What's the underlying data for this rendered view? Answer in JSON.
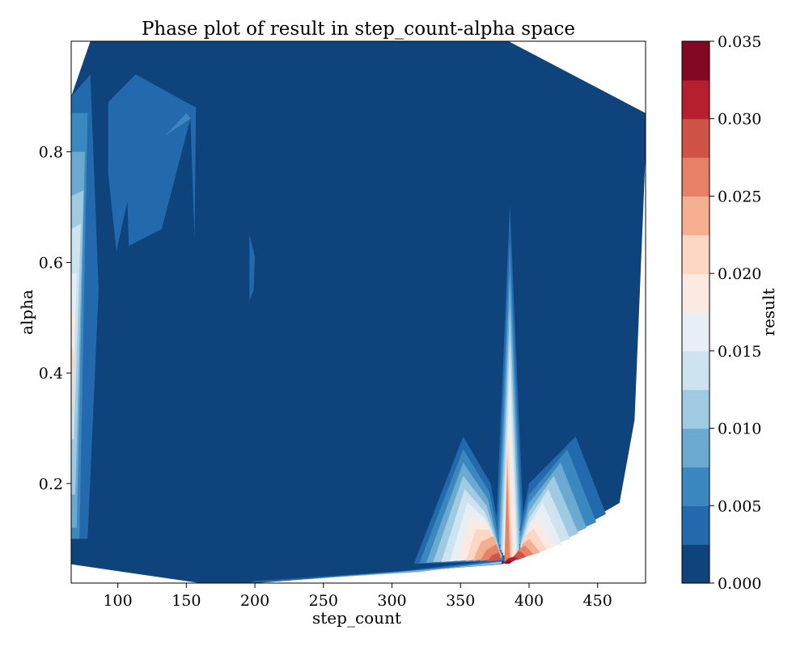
{
  "chart_data": {
    "type": "contour",
    "title": "Phase plot of result in step_count-alpha space",
    "xlabel": "step_count",
    "ylabel": "alpha",
    "xlim": [
      66,
      485
    ],
    "ylim": [
      0.02,
      1.0
    ],
    "xticks": [
      100,
      150,
      200,
      250,
      300,
      350,
      400,
      450
    ],
    "xtick_labels": [
      "100",
      "150",
      "200",
      "250",
      "300",
      "350",
      "400",
      "450"
    ],
    "yticks": [
      0.2,
      0.4,
      0.6,
      0.8
    ],
    "ytick_labels": [
      "0.2",
      "0.4",
      "0.6",
      "0.8"
    ],
    "grid": false,
    "colormap": "RdBu_r",
    "colorbar": {
      "label": "result",
      "range": [
        0.0,
        0.035
      ],
      "levels": [
        0.0,
        0.0025,
        0.005,
        0.0075,
        0.01,
        0.0125,
        0.015,
        0.0175,
        0.02,
        0.0225,
        0.025,
        0.0275,
        0.03,
        0.0325,
        0.035
      ],
      "ticks": [
        0.0,
        0.005,
        0.01,
        0.015,
        0.02,
        0.025,
        0.03,
        0.035
      ],
      "tick_labels": [
        "0.000",
        "0.005",
        "0.010",
        "0.015",
        "0.020",
        "0.025",
        "0.030",
        "0.035"
      ],
      "colors": [
        "#0f437b",
        "#2369ad",
        "#3b88c0",
        "#6aaad0",
        "#9fcae2",
        "#cde3ef",
        "#e8eff4",
        "#faeae1",
        "#fdd7c1",
        "#f4ae90",
        "#e68265",
        "#cf5347",
        "#b51f2e",
        "#830823"
      ]
    },
    "hull": [
      [
        66,
        0.054
      ],
      [
        160,
        0.02
      ],
      [
        200,
        0.02
      ],
      [
        380,
        0.054
      ],
      [
        400,
        0.07
      ],
      [
        466,
        0.165
      ],
      [
        477,
        0.315
      ],
      [
        485,
        0.8
      ],
      [
        485,
        0.87
      ],
      [
        385,
        1.0
      ],
      [
        80,
        1.0
      ],
      [
        66,
        0.9
      ]
    ],
    "regions": [
      {
        "level": 1,
        "points": [
          [
            66,
            0.78
          ],
          [
            66,
            0.9
          ],
          [
            80,
            0.94
          ],
          [
            86,
            0.55
          ],
          [
            78,
            0.1
          ],
          [
            66,
            0.1
          ]
        ]
      },
      {
        "level": 2,
        "points": [
          [
            66,
            0.7
          ],
          [
            66,
            0.87
          ],
          [
            78,
            0.87
          ],
          [
            72,
            0.1
          ],
          [
            66,
            0.1
          ]
        ]
      },
      {
        "level": 3,
        "points": [
          [
            66,
            0.62
          ],
          [
            66,
            0.8
          ],
          [
            76,
            0.8
          ],
          [
            70,
            0.12
          ],
          [
            66,
            0.12
          ]
        ]
      },
      {
        "level": 4,
        "points": [
          [
            66,
            0.55
          ],
          [
            66,
            0.72
          ],
          [
            75,
            0.73
          ],
          [
            69,
            0.18
          ],
          [
            66,
            0.18
          ]
        ]
      },
      {
        "level": 5,
        "points": [
          [
            66,
            0.45
          ],
          [
            66,
            0.66
          ],
          [
            73,
            0.67
          ],
          [
            68,
            0.28
          ],
          [
            66,
            0.28
          ]
        ]
      },
      {
        "level": 6,
        "points": [
          [
            66,
            0.4
          ],
          [
            66,
            0.58
          ],
          [
            70,
            0.58
          ],
          [
            67,
            0.35
          ]
        ]
      },
      {
        "level": 7,
        "points": [
          [
            66,
            0.32
          ],
          [
            66,
            0.52
          ],
          [
            69,
            0.5
          ],
          [
            67,
            0.38
          ]
        ]
      },
      {
        "level": 8,
        "points": [
          [
            66,
            0.3
          ],
          [
            66,
            0.45
          ],
          [
            68,
            0.43
          ]
        ]
      },
      {
        "level": 1,
        "points": [
          [
            93,
            0.89
          ],
          [
            113,
            0.94
          ],
          [
            157,
            0.88
          ],
          [
            156,
            0.64
          ],
          [
            153,
            0.86
          ],
          [
            132,
            0.66
          ],
          [
            108,
            0.63
          ],
          [
            107,
            0.71
          ],
          [
            99,
            0.62
          ],
          [
            93,
            0.76
          ]
        ]
      },
      {
        "level": 2,
        "points": [
          [
            135,
            0.83
          ],
          [
            150,
            0.87
          ],
          [
            153,
            0.86
          ]
        ]
      },
      {
        "level": 1,
        "points": [
          [
            196,
            0.65
          ],
          [
            200,
            0.61
          ],
          [
            199,
            0.55
          ],
          [
            196,
            0.53
          ]
        ]
      },
      {
        "level": 1,
        "points": [
          [
            316,
            0.055
          ],
          [
            352,
            0.285
          ],
          [
            372,
            0.2
          ],
          [
            382,
            0.06
          ]
        ]
      },
      {
        "level": 2,
        "points": [
          [
            320,
            0.056
          ],
          [
            352,
            0.262
          ],
          [
            371,
            0.185
          ],
          [
            381,
            0.062
          ]
        ]
      },
      {
        "level": 3,
        "points": [
          [
            325,
            0.057
          ],
          [
            352,
            0.238
          ],
          [
            370,
            0.172
          ],
          [
            380,
            0.064
          ]
        ]
      },
      {
        "level": 4,
        "points": [
          [
            330,
            0.058
          ],
          [
            352,
            0.214
          ],
          [
            369,
            0.16
          ],
          [
            380,
            0.066
          ]
        ]
      },
      {
        "level": 5,
        "points": [
          [
            336,
            0.058
          ],
          [
            353,
            0.19
          ],
          [
            368,
            0.148
          ],
          [
            380,
            0.068
          ]
        ]
      },
      {
        "level": 6,
        "points": [
          [
            342,
            0.059
          ],
          [
            355,
            0.166
          ],
          [
            368,
            0.137
          ],
          [
            380,
            0.07
          ]
        ]
      },
      {
        "level": 7,
        "points": [
          [
            348,
            0.06
          ],
          [
            358,
            0.14
          ],
          [
            369,
            0.127
          ],
          [
            380,
            0.07
          ]
        ]
      },
      {
        "level": 8,
        "points": [
          [
            354,
            0.06
          ],
          [
            361,
            0.117
          ],
          [
            371,
            0.117
          ],
          [
            380,
            0.07
          ]
        ]
      },
      {
        "level": 9,
        "points": [
          [
            359,
            0.06
          ],
          [
            365,
            0.095
          ],
          [
            374,
            0.105
          ],
          [
            380,
            0.07
          ]
        ]
      },
      {
        "level": 10,
        "points": [
          [
            364,
            0.06
          ],
          [
            369,
            0.08
          ],
          [
            376,
            0.09
          ],
          [
            380,
            0.065
          ]
        ]
      },
      {
        "level": 11,
        "points": [
          [
            369,
            0.058
          ],
          [
            373,
            0.07
          ],
          [
            378,
            0.075
          ],
          [
            380,
            0.06
          ]
        ]
      },
      {
        "level": 1,
        "points": [
          [
            376,
            0.12
          ],
          [
            386,
            0.705
          ],
          [
            396,
            0.12
          ]
        ]
      },
      {
        "level": 2,
        "points": [
          [
            377,
            0.1
          ],
          [
            386,
            0.64
          ],
          [
            395,
            0.1
          ]
        ]
      },
      {
        "level": 3,
        "points": [
          [
            378,
            0.09
          ],
          [
            386,
            0.58
          ],
          [
            394,
            0.09
          ]
        ]
      },
      {
        "level": 4,
        "points": [
          [
            379,
            0.08
          ],
          [
            386,
            0.52
          ],
          [
            393,
            0.08
          ]
        ]
      },
      {
        "level": 5,
        "points": [
          [
            380,
            0.075
          ],
          [
            386,
            0.46
          ],
          [
            392,
            0.075
          ]
        ]
      },
      {
        "level": 6,
        "points": [
          [
            381,
            0.07
          ],
          [
            386,
            0.4
          ],
          [
            391,
            0.07
          ]
        ]
      },
      {
        "level": 7,
        "points": [
          [
            382,
            0.065
          ],
          [
            386,
            0.34
          ],
          [
            390,
            0.065
          ]
        ]
      },
      {
        "level": 8,
        "points": [
          [
            382,
            0.06
          ],
          [
            385,
            0.29
          ],
          [
            388,
            0.06
          ]
        ]
      },
      {
        "level": 9,
        "points": [
          [
            382,
            0.058
          ],
          [
            384,
            0.26
          ],
          [
            387,
            0.058
          ]
        ]
      },
      {
        "level": 10,
        "points": [
          [
            382,
            0.057
          ],
          [
            384,
            0.22
          ],
          [
            386,
            0.057
          ]
        ]
      },
      {
        "level": 1,
        "points": [
          [
            393,
            0.115
          ],
          [
            400,
            0.2
          ],
          [
            434,
            0.285
          ],
          [
            456,
            0.145
          ],
          [
            445,
            0.13
          ]
        ]
      },
      {
        "level": 2,
        "points": [
          [
            393,
            0.105
          ],
          [
            400,
            0.18
          ],
          [
            428,
            0.262
          ],
          [
            449,
            0.13
          ],
          [
            440,
            0.12
          ]
        ]
      },
      {
        "level": 3,
        "points": [
          [
            393,
            0.095
          ],
          [
            400,
            0.165
          ],
          [
            423,
            0.238
          ],
          [
            442,
            0.12
          ],
          [
            433,
            0.11
          ]
        ]
      },
      {
        "level": 4,
        "points": [
          [
            393,
            0.085
          ],
          [
            400,
            0.15
          ],
          [
            418,
            0.214
          ],
          [
            436,
            0.11
          ],
          [
            427,
            0.1
          ]
        ]
      },
      {
        "level": 5,
        "points": [
          [
            393,
            0.08
          ],
          [
            400,
            0.137
          ],
          [
            414,
            0.19
          ],
          [
            430,
            0.1
          ],
          [
            421,
            0.092
          ]
        ]
      },
      {
        "level": 6,
        "points": [
          [
            393,
            0.075
          ],
          [
            400,
            0.125
          ],
          [
            410,
            0.166
          ],
          [
            424,
            0.09
          ],
          [
            416,
            0.085
          ]
        ]
      },
      {
        "level": 7,
        "points": [
          [
            393,
            0.07
          ],
          [
            400,
            0.115
          ],
          [
            406,
            0.14
          ],
          [
            418,
            0.085
          ],
          [
            411,
            0.08
          ]
        ]
      },
      {
        "level": 8,
        "points": [
          [
            392,
            0.07
          ],
          [
            397,
            0.105
          ],
          [
            403,
            0.118
          ],
          [
            413,
            0.08
          ],
          [
            406,
            0.075
          ]
        ]
      },
      {
        "level": 9,
        "points": [
          [
            391,
            0.068
          ],
          [
            395,
            0.09
          ],
          [
            400,
            0.1
          ],
          [
            408,
            0.075
          ],
          [
            401,
            0.07
          ]
        ]
      },
      {
        "level": 10,
        "points": [
          [
            389,
            0.065
          ],
          [
            392,
            0.08
          ],
          [
            397,
            0.088
          ],
          [
            403,
            0.072
          ],
          [
            396,
            0.066
          ]
        ]
      },
      {
        "level": 11,
        "points": [
          [
            387,
            0.062
          ],
          [
            390,
            0.072
          ],
          [
            393,
            0.078
          ],
          [
            398,
            0.068
          ],
          [
            392,
            0.062
          ]
        ]
      },
      {
        "level": 12,
        "points": [
          [
            381,
            0.056
          ],
          [
            385,
            0.065
          ],
          [
            389,
            0.068
          ],
          [
            392,
            0.064
          ],
          [
            386,
            0.056
          ]
        ]
      },
      {
        "level": 13,
        "points": [
          [
            382,
            0.055
          ],
          [
            384,
            0.06
          ],
          [
            387,
            0.06
          ],
          [
            386,
            0.055
          ]
        ]
      },
      {
        "level": 1,
        "points": [
          [
            195,
            0.02
          ],
          [
            380,
            0.054
          ],
          [
            380,
            0.062
          ],
          [
            300,
            0.04
          ],
          [
            200,
            0.024
          ]
        ]
      },
      {
        "level": 2,
        "points": [
          [
            210,
            0.022
          ],
          [
            380,
            0.055
          ],
          [
            380,
            0.06
          ],
          [
            300,
            0.038
          ]
        ]
      },
      {
        "level": 3,
        "points": [
          [
            240,
            0.028
          ],
          [
            380,
            0.055
          ],
          [
            380,
            0.059
          ],
          [
            320,
            0.04
          ]
        ]
      },
      {
        "level": 4,
        "points": [
          [
            280,
            0.034
          ],
          [
            380,
            0.055
          ],
          [
            380,
            0.058
          ],
          [
            330,
            0.044
          ]
        ]
      }
    ]
  }
}
